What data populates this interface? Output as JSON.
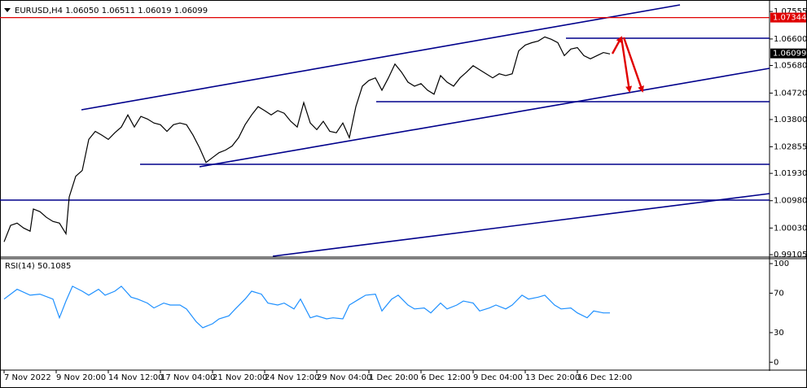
{
  "chart_data": [
    {
      "type": "line",
      "title": "EURUSD,H4  1.06050 1.06511 1.06019 1.06099",
      "color": "#000000",
      "x": [
        0,
        2,
        4,
        6,
        8,
        9,
        11,
        13,
        15,
        17,
        19,
        20,
        22,
        24,
        26,
        28,
        30,
        32,
        34,
        36,
        38,
        40,
        42,
        44,
        46,
        48,
        50,
        52,
        54,
        56,
        58,
        60,
        62,
        64,
        66,
        68,
        70,
        72,
        74,
        76,
        78,
        80,
        82,
        84,
        86,
        88,
        90,
        92,
        94,
        96,
        98,
        100,
        102,
        104,
        106,
        108,
        110,
        112,
        114,
        116,
        118,
        120,
        122,
        124,
        126,
        128,
        130,
        132,
        134,
        136,
        138,
        140,
        142,
        144,
        146,
        148,
        150,
        152,
        154,
        156,
        158,
        160,
        162,
        164,
        166,
        168,
        170,
        172,
        174,
        176,
        178,
        180,
        182,
        184,
        186
      ],
      "values": [
        0.9955,
        1.0012,
        1.002,
        1.0003,
        0.9992,
        1.0069,
        1.006,
        1.004,
        1.0026,
        1.002,
        0.9983,
        1.0111,
        1.0183,
        1.0203,
        1.0311,
        1.0339,
        1.0326,
        1.0311,
        1.0334,
        1.0354,
        1.0396,
        1.0354,
        1.0391,
        1.0382,
        1.0368,
        1.0362,
        1.0339,
        1.0362,
        1.0368,
        1.0362,
        1.0326,
        1.0282,
        1.0231,
        1.0248,
        1.0265,
        1.0274,
        1.0288,
        1.0317,
        1.0362,
        1.0396,
        1.0425,
        1.0411,
        1.0396,
        1.0411,
        1.0402,
        1.0374,
        1.0354,
        1.0439,
        1.0368,
        1.0345,
        1.0374,
        1.0339,
        1.0334,
        1.0368,
        1.0317,
        1.0425,
        1.0496,
        1.0516,
        1.0525,
        1.0482,
        1.0525,
        1.0573,
        1.0545,
        1.051,
        1.0496,
        1.0505,
        1.0482,
        1.0468,
        1.0533,
        1.051,
        1.0496,
        1.0525,
        1.0545,
        1.0567,
        1.0553,
        1.0539,
        1.0525,
        1.0539,
        1.0533,
        1.0539,
        1.0619,
        1.0639,
        1.0647,
        1.0653,
        1.0667,
        1.0659,
        1.0647,
        1.0602,
        1.0625,
        1.063,
        1.0602,
        1.0591,
        1.0602,
        1.0613,
        1.0608
      ],
      "xlim": [
        -1.25,
        235
      ],
      "xticks": [
        {
          "value": 0,
          "label": "7 Nov 2022"
        },
        {
          "value": 16,
          "label": "9 Nov 20:00"
        },
        {
          "value": 32,
          "label": "14 Nov 12:00"
        },
        {
          "value": 48,
          "label": "17 Nov 04:00"
        },
        {
          "value": 64,
          "label": "21 Nov 20:00"
        },
        {
          "value": 80,
          "label": "24 Nov 12:00"
        },
        {
          "value": 96,
          "label": "29 Nov 04:00"
        },
        {
          "value": 112,
          "label": "1 Dec 20:00"
        },
        {
          "value": 128,
          "label": "6 Dec 12:00"
        },
        {
          "value": 144,
          "label": "9 Dec 04:00"
        },
        {
          "value": 160,
          "label": "13 Dec 20:00"
        },
        {
          "value": 176,
          "label": "16 Dec 12:00"
        }
      ],
      "ylim": [
        0.9905,
        1.0787
      ],
      "yticks": [
        1.07555,
        {
          "value": 1.066,
          "label": "1.06600"
        },
        {
          "value": 1.0568,
          "label": "1.05680"
        },
        {
          "value": 1.0472,
          "label": "1.04720"
        },
        {
          "value": 1.038,
          "label": "1.03800"
        },
        1.02855,
        {
          "value": 1.0193,
          "label": "1.01930"
        },
        {
          "value": 1.0098,
          "label": "1.00980"
        },
        {
          "value": 1.0003,
          "label": "1.00030"
        },
        0.99105
      ],
      "price_labels": [
        {
          "value": 1.07344,
          "color": "#e00000",
          "line": true
        },
        {
          "value": 1.06099,
          "color": "#000000",
          "line": false
        }
      ]
    },
    {
      "type": "line",
      "title": "RSI(14) 50.1085",
      "color": "#1e90ff",
      "x": [
        0,
        4,
        8,
        11,
        15,
        17,
        19,
        21,
        24,
        26,
        29,
        31,
        34,
        36,
        39,
        41,
        44,
        46,
        49,
        51,
        54,
        56,
        59,
        61,
        64,
        66,
        69,
        71,
        74,
        76,
        79,
        81,
        84,
        86,
        89,
        91,
        94,
        96,
        99,
        101,
        104,
        106,
        109,
        111,
        114,
        116,
        119,
        121,
        124,
        126,
        129,
        131,
        134,
        136,
        139,
        141,
        144,
        146,
        149,
        151,
        154,
        156,
        159,
        161,
        164,
        166,
        169,
        171,
        174,
        176,
        179,
        181,
        184,
        186
      ],
      "values": [
        64,
        74,
        68,
        69,
        64,
        45,
        62,
        77,
        72,
        68,
        74,
        68,
        72,
        77,
        66,
        64,
        60,
        55,
        60,
        58,
        58,
        54,
        41,
        35,
        39,
        44,
        47,
        54,
        64,
        72,
        69,
        60,
        58,
        60,
        54,
        64,
        45,
        47,
        44,
        45,
        44,
        58,
        64,
        68,
        69,
        52,
        64,
        68,
        58,
        54,
        55,
        50,
        60,
        54,
        58,
        62,
        60,
        52,
        55,
        58,
        54,
        58,
        68,
        64,
        66,
        68,
        58,
        54,
        55,
        50,
        45,
        52,
        50,
        50
      ],
      "xlim": [
        -1.25,
        235
      ],
      "ylim": [
        -8,
        105
      ],
      "yticks": [
        100,
        70,
        30,
        0
      ]
    }
  ]
}
